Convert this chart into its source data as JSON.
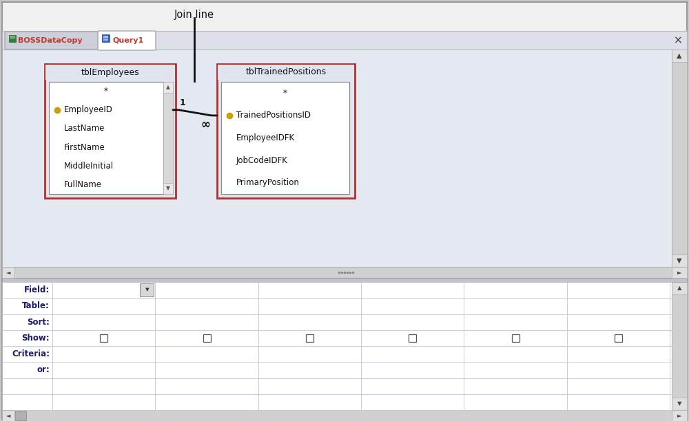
{
  "bg_color": "#e8eaf0",
  "white": "#ffffff",
  "border_red": "#b03030",
  "grid_line_color": "#c8cce0",
  "label_color": "#1a1a6e",
  "annotation_text": "Join line",
  "tab1_label": "BOSSDataCopy",
  "tab2_label": "Query1",
  "close_x": "×",
  "table1_title": "tblEmployees",
  "table1_fields": [
    "*",
    "EmployeeID",
    "LastName",
    "FirstName",
    "MiddleInitial",
    "FullName"
  ],
  "table2_title": "tblTrainedPositions",
  "table2_fields": [
    "*",
    "TrainedPositionsID",
    "EmployeeIDFK",
    "JobCodeIDFK",
    "PrimaryPosition"
  ],
  "grid_row_labels": [
    "Field:",
    "Table:",
    "Sort:",
    "Show:",
    "Criteria:",
    "or:"
  ],
  "num_grid_cols": 6,
  "key_icon_color": "#c8a000",
  "inner_bg": "#e8eaf2",
  "tab_bar_bg": "#dde0e8",
  "window_bg": "#f0f0f0",
  "splitter_bg": "#c0c2cc",
  "upper_pane_bg": "#e4e8f0",
  "table_box_bg": "#e0e4ee",
  "scrollbar_bg": "#d0d0d0",
  "scrollbar_thumb": "#a0a0a0"
}
